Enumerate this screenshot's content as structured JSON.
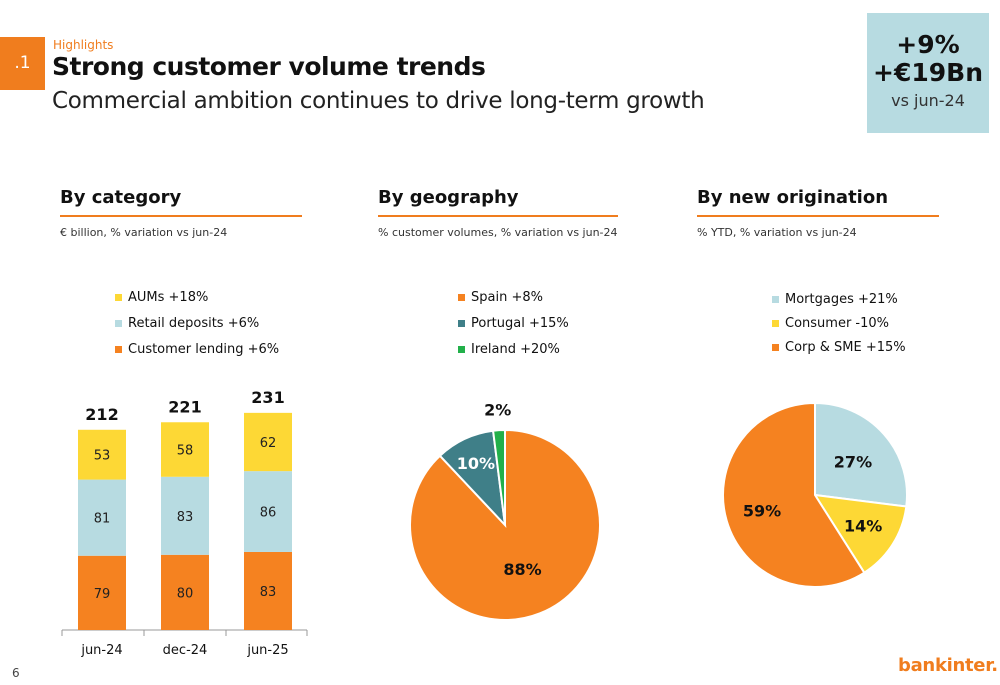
{
  "header": {
    "section_number": ".1",
    "kicker": "Highlights",
    "title": "Strong customer volume trends",
    "subtitle": "Commercial ambition continues to drive long-term growth"
  },
  "kpi": {
    "line1": "+9%",
    "line2": "+€19Bn",
    "line3": "vs jun-24"
  },
  "sections": {
    "category": {
      "title": "By category",
      "subtitle": "€ billion, % variation vs jun-24"
    },
    "geography": {
      "title": "By geography",
      "subtitle": "% customer volumes, % variation vs jun-24"
    },
    "origination": {
      "title": "By new origination",
      "subtitle": "% YTD, % variation vs jun-24"
    }
  },
  "legends": {
    "category": [
      {
        "label": "AUMs +18%",
        "color": "#fdd835"
      },
      {
        "label": "Retail deposits +6%",
        "color": "#b7dbe1"
      },
      {
        "label": "Customer lending +6%",
        "color": "#f58220"
      }
    ],
    "geography": [
      {
        "label": "Spain +8%",
        "color": "#f58220"
      },
      {
        "label": "Portugal +15%",
        "color": "#3f7f88"
      },
      {
        "label": "Ireland +20%",
        "color": "#22b04a"
      }
    ],
    "origination": [
      {
        "label": "Mortgages +21%",
        "color": "#b7dbe1"
      },
      {
        "label": "Consumer -10%",
        "color": "#fdd835"
      },
      {
        "label": "Corp & SME +15%",
        "color": "#f58220"
      }
    ]
  },
  "chart_data": [
    {
      "type": "bar",
      "stacked": true,
      "categories": [
        "jun-24",
        "dec-24",
        "jun-25"
      ],
      "series": [
        {
          "name": "Customer lending",
          "values": [
            79,
            80,
            83
          ],
          "color": "#f58220"
        },
        {
          "name": "Retail deposits",
          "values": [
            81,
            83,
            86
          ],
          "color": "#b7dbe1"
        },
        {
          "name": "AUMs",
          "values": [
            53,
            58,
            62
          ],
          "color": "#fdd835"
        }
      ],
      "totals": [
        212,
        221,
        231
      ]
    },
    {
      "type": "pie",
      "labels": [
        "Spain",
        "Portugal",
        "Ireland"
      ],
      "values": [
        88,
        10,
        2
      ],
      "display_labels": [
        "88%",
        "10%",
        "2%"
      ],
      "colors": [
        "#f58220",
        "#3f7f88",
        "#22b04a"
      ]
    },
    {
      "type": "pie",
      "labels": [
        "Mortgages",
        "Consumer",
        "Corp & SME"
      ],
      "values": [
        27,
        14,
        59
      ],
      "display_labels": [
        "27%",
        "14%",
        "59%"
      ],
      "colors": [
        "#b7dbe1",
        "#fdd835",
        "#f58220"
      ]
    }
  ],
  "footer": {
    "page_number": "6",
    "logo_text": "bankinter."
  }
}
